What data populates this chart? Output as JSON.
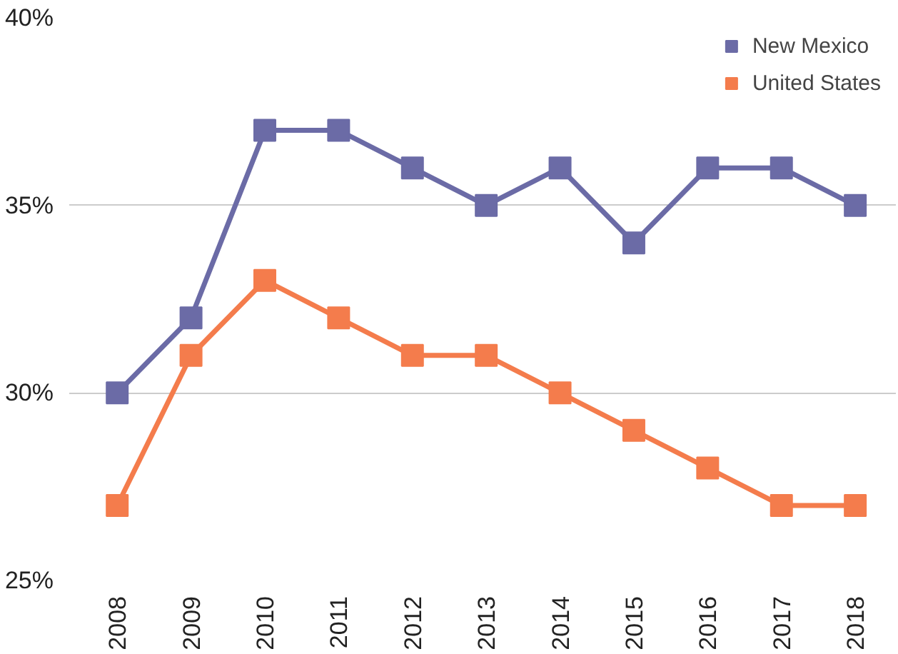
{
  "chart_data": {
    "type": "line",
    "categories": [
      "2008",
      "2009",
      "2010",
      "2011",
      "2012",
      "2013",
      "2014",
      "2015",
      "2016",
      "2017",
      "2018"
    ],
    "series": [
      {
        "name": "New Mexico",
        "color": "#6b6ba6",
        "values": [
          30,
          32,
          37,
          37,
          36,
          35,
          36,
          34,
          36,
          36,
          35
        ]
      },
      {
        "name": "United States",
        "color": "#f47c4c",
        "values": [
          27,
          31,
          33,
          32,
          31,
          31,
          30,
          29,
          28,
          27,
          27
        ]
      }
    ],
    "ylim": [
      25,
      40
    ],
    "yticks": [
      {
        "value": 25,
        "label": "25%"
      },
      {
        "value": 30,
        "label": "30%"
      },
      {
        "value": 35,
        "label": "35%"
      },
      {
        "value": 40,
        "label": "40%"
      }
    ],
    "grid": "y",
    "legend": "top right",
    "marker": "square",
    "line_style": "solid"
  }
}
